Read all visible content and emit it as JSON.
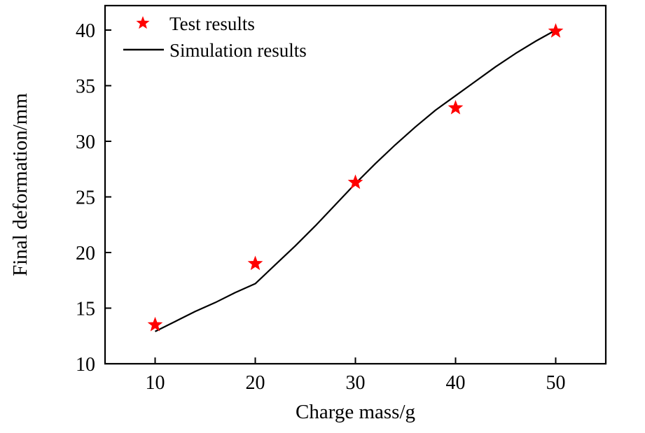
{
  "chart_data": {
    "type": "line",
    "title": "",
    "xlabel": "Charge mass/g",
    "ylabel": "Final deformation/mm",
    "xlim": [
      5,
      55
    ],
    "ylim": [
      10,
      42.2
    ],
    "xticks": [
      10,
      20,
      30,
      40,
      50
    ],
    "yticks": [
      10,
      15,
      20,
      25,
      30,
      35,
      40
    ],
    "grid": false,
    "legend_position": "top-left",
    "series": [
      {
        "name": "Test results",
        "type": "scatter",
        "marker": "star",
        "color": "#ff0000",
        "x": [
          10,
          20,
          30,
          40,
          50
        ],
        "y": [
          13.5,
          19.0,
          26.3,
          33.0,
          39.9
        ]
      },
      {
        "name": "Simulation results",
        "type": "line",
        "color": "#000000",
        "x": [
          10,
          12,
          14,
          16,
          18,
          20,
          22,
          24,
          26,
          28,
          30,
          32,
          34,
          36,
          38,
          40,
          42,
          44,
          46,
          48,
          50
        ],
        "y": [
          12.9,
          13.8,
          14.7,
          15.5,
          16.4,
          17.2,
          18.9,
          20.6,
          22.4,
          24.3,
          26.2,
          28.0,
          29.7,
          31.3,
          32.8,
          34.1,
          35.4,
          36.7,
          37.9,
          39.0,
          40.0
        ]
      }
    ],
    "colors": {
      "frame": "#000000",
      "marker": "#ff0000",
      "line": "#000000"
    }
  }
}
